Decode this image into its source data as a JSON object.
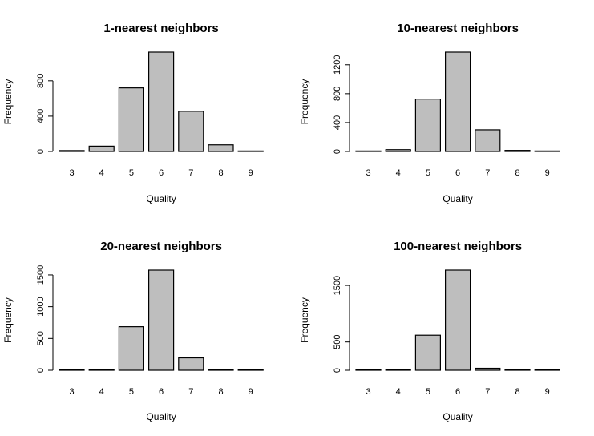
{
  "chart_data": [
    {
      "type": "bar",
      "title": "1-nearest neighbors",
      "xlabel": "Quality",
      "ylabel": "Frequency",
      "categories": [
        "3",
        "4",
        "5",
        "6",
        "7",
        "8",
        "9"
      ],
      "values": [
        10,
        60,
        720,
        1125,
        455,
        75,
        5
      ],
      "yticks": [
        0,
        400,
        800
      ],
      "ylim": [
        0,
        1125
      ],
      "bar_color": "#bebebe",
      "border_color": "#000000",
      "grid": false
    },
    {
      "type": "bar",
      "title": "10-nearest neighbors",
      "xlabel": "Quality",
      "ylabel": "Frequency",
      "categories": [
        "3",
        "4",
        "5",
        "6",
        "7",
        "8",
        "9"
      ],
      "values": [
        3,
        25,
        725,
        1375,
        300,
        15,
        3
      ],
      "yticks": [
        0,
        400,
        800,
        1200
      ],
      "ylim": [
        0,
        1375
      ],
      "bar_color": "#bebebe",
      "border_color": "#000000",
      "grid": false
    },
    {
      "type": "bar",
      "title": "20-nearest neighbors",
      "xlabel": "Quality",
      "ylabel": "Frequency",
      "categories": [
        "3",
        "4",
        "5",
        "6",
        "7",
        "8",
        "9"
      ],
      "values": [
        2,
        3,
        685,
        1575,
        195,
        3,
        2
      ],
      "yticks": [
        0,
        500,
        1000,
        1500
      ],
      "ylim": [
        0,
        1575
      ],
      "bar_color": "#bebebe",
      "border_color": "#000000",
      "grid": false
    },
    {
      "type": "bar",
      "title": "100-nearest neighbors",
      "xlabel": "Quality",
      "ylabel": "Frequency",
      "categories": [
        "3",
        "4",
        "5",
        "6",
        "7",
        "8",
        "9"
      ],
      "values": [
        1,
        2,
        620,
        1770,
        35,
        1,
        1
      ],
      "yticks": [
        0,
        500,
        1500
      ],
      "ylim": [
        0,
        1770
      ],
      "bar_color": "#bebebe",
      "border_color": "#000000",
      "grid": false
    }
  ]
}
